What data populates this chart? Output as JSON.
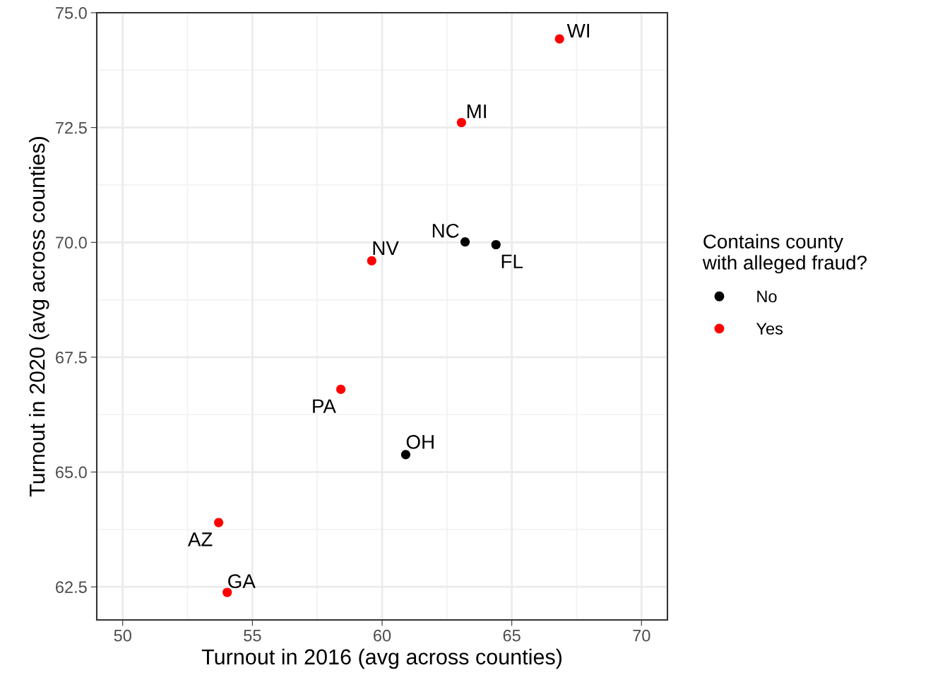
{
  "chart_data": {
    "type": "scatter",
    "xlabel": "Turnout in 2016 (avg across counties)",
    "ylabel": "Turnout in 2020 (avg across counties)",
    "legend_title": "Contains county\nwith alleged fraud?",
    "series": [
      {
        "name": "No",
        "color": "#000000",
        "x": [
          63.2,
          64.39,
          60.91
        ],
        "values": [
          70.01,
          69.95,
          65.38
        ]
      },
      {
        "name": "Yes",
        "color": "#ff0000",
        "x": [
          66.84,
          63.06,
          59.6,
          58.41,
          53.7,
          54.03
        ],
        "values": [
          74.43,
          72.61,
          69.6,
          66.8,
          63.9,
          62.38
        ]
      }
    ],
    "annotations": [
      {
        "text": "WI",
        "x": 66.84,
        "y": 74.43
      },
      {
        "text": "MI",
        "x": 63.06,
        "y": 72.61
      },
      {
        "text": "NC",
        "x": 63.2,
        "y": 70.01
      },
      {
        "text": "FL",
        "x": 64.39,
        "y": 69.95
      },
      {
        "text": "NV",
        "x": 59.6,
        "y": 69.6
      },
      {
        "text": "PA",
        "x": 58.41,
        "y": 66.8
      },
      {
        "text": "OH",
        "x": 60.91,
        "y": 65.38
      },
      {
        "text": "AZ",
        "x": 53.7,
        "y": 63.9
      },
      {
        "text": "GA",
        "x": 54.03,
        "y": 62.38
      }
    ],
    "xlim": [
      49,
      71
    ],
    "xticks": [
      50,
      55,
      60,
      65,
      70
    ],
    "ylim": [
      61.78,
      75.0
    ],
    "yticks": [
      {
        "value": 62.5,
        "label": "62.5"
      },
      {
        "value": 65,
        "label": "65.0"
      },
      {
        "value": 67.5,
        "label": "67.5"
      },
      {
        "value": 70,
        "label": "70.0"
      },
      {
        "value": 72.5,
        "label": "72.5"
      },
      {
        "value": 75,
        "label": "75.0"
      }
    ],
    "grid": true,
    "legend": "right",
    "marker": "circle"
  }
}
